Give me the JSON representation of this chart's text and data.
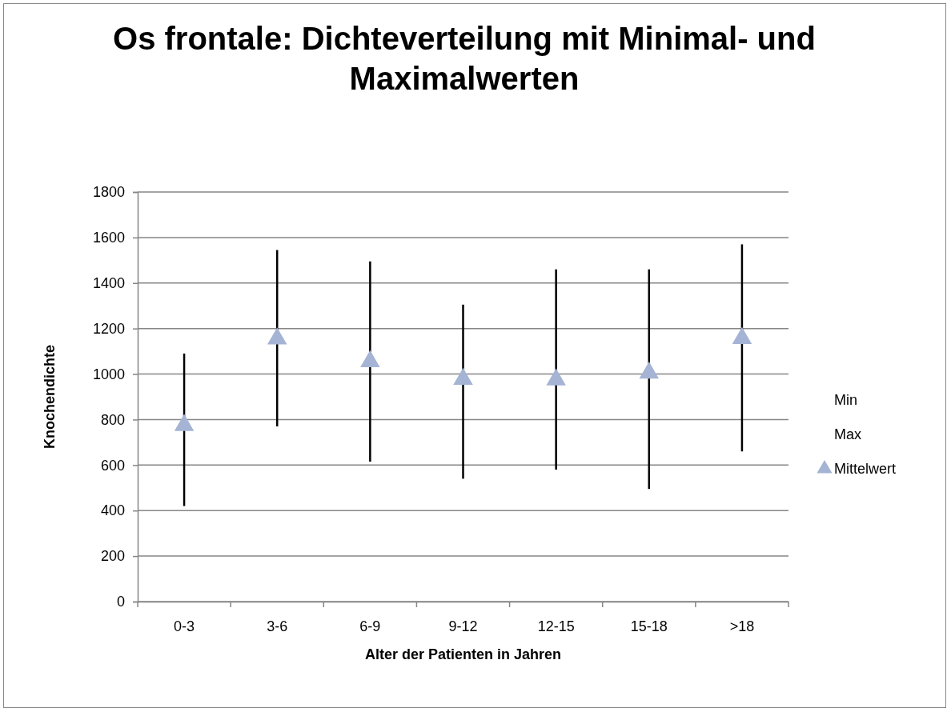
{
  "chart_data": {
    "type": "scatter",
    "title": "Os frontale: Dichteverteilung mit Minimal- und Maximalwerten",
    "xlabel": "Alter der Patienten in Jahren",
    "ylabel": "Knochendichte",
    "categories": [
      "0-3",
      "3-6",
      "6-9",
      "9-12",
      "12-15",
      "15-18",
      ">18"
    ],
    "series": [
      {
        "name": "Min",
        "color": "#000000",
        "marker": "none",
        "values": [
          null,
          null,
          null,
          null,
          null,
          null,
          null
        ]
      },
      {
        "name": "Max",
        "color": "#000000",
        "marker": "none",
        "values": [
          null,
          null,
          null,
          null,
          null,
          null,
          null
        ]
      },
      {
        "name": "Mittelwert",
        "color": "#a5b4d4",
        "marker": "triangle",
        "values": [
          775,
          1155,
          1055,
          978,
          975,
          1005,
          1157
        ],
        "errors": [
          [
            420,
            1090
          ],
          [
            770,
            1545
          ],
          [
            615,
            1495
          ],
          [
            540,
            1305
          ],
          [
            580,
            1460
          ],
          [
            495,
            1460
          ],
          [
            660,
            1570
          ]
        ]
      }
    ],
    "ylim": [
      0,
      1800
    ],
    "yticks": [
      0,
      200,
      400,
      600,
      800,
      1000,
      1200,
      1400,
      1600,
      1800
    ],
    "grid": "y",
    "legend": "right"
  }
}
